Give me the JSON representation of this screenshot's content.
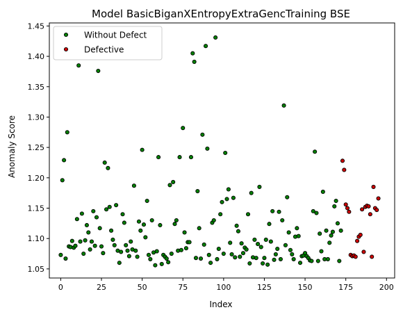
{
  "chart_data": {
    "type": "scatter",
    "title": "Model BasicBiganXEntropyExtraGencTraining BSE",
    "xlabel": "Index",
    "ylabel": "Anomaly Score",
    "xlim": [
      -7,
      205
    ],
    "ylim": [
      1.035,
      1.455
    ],
    "xticks": [
      0,
      25,
      50,
      75,
      100,
      125,
      150,
      175,
      200
    ],
    "yticks": [
      1.05,
      1.1,
      1.15,
      1.2,
      1.25,
      1.3,
      1.35,
      1.4,
      1.45
    ],
    "ytick_labels": [
      "1.05",
      "1.10",
      "1.15",
      "1.20",
      "1.25",
      "1.30",
      "1.35",
      "1.40",
      "1.45"
    ],
    "grid": false,
    "legend_position": "upper-left",
    "series": [
      {
        "name": "Without Defect",
        "color": "#008000",
        "points": [
          [
            0,
            1.073
          ],
          [
            1,
            1.196
          ],
          [
            2,
            1.229
          ],
          [
            3,
            1.067
          ],
          [
            4,
            1.275
          ],
          [
            5,
            1.087
          ],
          [
            6,
            1.086
          ],
          [
            7,
            1.096
          ],
          [
            8,
            1.085
          ],
          [
            9,
            1.088
          ],
          [
            10,
            1.132
          ],
          [
            11,
            1.385
          ],
          [
            12,
            1.095
          ],
          [
            13,
            1.141
          ],
          [
            14,
            1.075
          ],
          [
            15,
            1.097
          ],
          [
            16,
            1.122
          ],
          [
            17,
            1.11
          ],
          [
            18,
            1.082
          ],
          [
            19,
            1.095
          ],
          [
            20,
            1.145
          ],
          [
            21,
            1.088
          ],
          [
            22,
            1.135
          ],
          [
            23,
            1.376
          ],
          [
            24,
            1.117
          ],
          [
            25,
            1.087
          ],
          [
            26,
            1.076
          ],
          [
            27,
            1.225
          ],
          [
            28,
            1.148
          ],
          [
            29,
            1.216
          ],
          [
            30,
            1.152
          ],
          [
            31,
            1.113
          ],
          [
            32,
            1.098
          ],
          [
            33,
            1.089
          ],
          [
            34,
            1.155
          ],
          [
            35,
            1.08
          ],
          [
            36,
            1.06
          ],
          [
            37,
            1.078
          ],
          [
            38,
            1.14
          ],
          [
            39,
            1.126
          ],
          [
            40,
            1.089
          ],
          [
            41,
            1.08
          ],
          [
            42,
            1.071
          ],
          [
            43,
            1.095
          ],
          [
            44,
            1.082
          ],
          [
            45,
            1.187
          ],
          [
            46,
            1.08
          ],
          [
            47,
            1.07
          ],
          [
            48,
            1.128
          ],
          [
            49,
            1.113
          ],
          [
            50,
            1.246
          ],
          [
            51,
            1.123
          ],
          [
            52,
            1.102
          ],
          [
            53,
            1.162
          ],
          [
            54,
            1.073
          ],
          [
            55,
            1.066
          ],
          [
            56,
            1.13
          ],
          [
            57,
            1.077
          ],
          [
            58,
            1.056
          ],
          [
            59,
            1.079
          ],
          [
            60,
            1.234
          ],
          [
            61,
            1.122
          ],
          [
            62,
            1.058
          ],
          [
            63,
            1.073
          ],
          [
            64,
            1.07
          ],
          [
            65,
            1.067
          ],
          [
            66,
            1.061
          ],
          [
            67,
            1.188
          ],
          [
            68,
            1.075
          ],
          [
            69,
            1.193
          ],
          [
            70,
            1.124
          ],
          [
            71,
            1.13
          ],
          [
            72,
            1.08
          ],
          [
            73,
            1.234
          ],
          [
            74,
            1.081
          ],
          [
            75,
            1.282
          ],
          [
            76,
            1.11
          ],
          [
            77,
            1.084
          ],
          [
            78,
            1.094
          ],
          [
            79,
            1.094
          ],
          [
            80,
            1.234
          ],
          [
            81,
            1.405
          ],
          [
            82,
            1.391
          ],
          [
            83,
            1.068
          ],
          [
            84,
            1.178
          ],
          [
            85,
            1.117
          ],
          [
            86,
            1.067
          ],
          [
            87,
            1.271
          ],
          [
            88,
            1.09
          ],
          [
            89,
            1.417
          ],
          [
            90,
            1.248
          ],
          [
            91,
            1.073
          ],
          [
            92,
            1.06
          ],
          [
            93,
            1.126
          ],
          [
            94,
            1.13
          ],
          [
            95,
            1.431
          ],
          [
            96,
            1.066
          ],
          [
            97,
            1.083
          ],
          [
            98,
            1.14
          ],
          [
            99,
            1.16
          ],
          [
            100,
            1.075
          ],
          [
            101,
            1.241
          ],
          [
            102,
            1.165
          ],
          [
            103,
            1.181
          ],
          [
            104,
            1.093
          ],
          [
            105,
            1.074
          ],
          [
            106,
            1.167
          ],
          [
            107,
            1.069
          ],
          [
            108,
            1.121
          ],
          [
            109,
            1.112
          ],
          [
            110,
            1.07
          ],
          [
            111,
            1.092
          ],
          [
            112,
            1.076
          ],
          [
            113,
            1.085
          ],
          [
            114,
            1.082
          ],
          [
            115,
            1.14
          ],
          [
            116,
            1.059
          ],
          [
            117,
            1.175
          ],
          [
            118,
            1.069
          ],
          [
            119,
            1.098
          ],
          [
            120,
            1.068
          ],
          [
            121,
            1.091
          ],
          [
            122,
            1.185
          ],
          [
            123,
            1.086
          ],
          [
            124,
            1.059
          ],
          [
            125,
            1.068
          ],
          [
            126,
            1.098
          ],
          [
            127,
            1.057
          ],
          [
            128,
            1.124
          ],
          [
            129,
            1.095
          ],
          [
            130,
            1.145
          ],
          [
            131,
            1.065
          ],
          [
            132,
            1.074
          ],
          [
            133,
            1.083
          ],
          [
            134,
            1.144
          ],
          [
            135,
            1.066
          ],
          [
            136,
            1.13
          ],
          [
            137,
            1.319
          ],
          [
            138,
            1.089
          ],
          [
            139,
            1.168
          ],
          [
            140,
            1.11
          ],
          [
            141,
            1.081
          ],
          [
            142,
            1.074
          ],
          [
            143,
            1.066
          ],
          [
            144,
            1.103
          ],
          [
            145,
            1.117
          ],
          [
            146,
            1.104
          ],
          [
            147,
            1.06
          ],
          [
            148,
            1.071
          ],
          [
            149,
            1.072
          ],
          [
            150,
            1.076
          ],
          [
            151,
            1.071
          ],
          [
            152,
            1.068
          ],
          [
            153,
            1.064
          ],
          [
            154,
            1.063
          ],
          [
            155,
            1.145
          ],
          [
            156,
            1.243
          ],
          [
            157,
            1.142
          ],
          [
            158,
            1.063
          ],
          [
            159,
            1.108
          ],
          [
            160,
            1.079
          ],
          [
            161,
            1.177
          ],
          [
            162,
            1.066
          ],
          [
            163,
            1.113
          ],
          [
            164,
            1.066
          ],
          [
            165,
            1.093
          ],
          [
            166,
            1.105
          ],
          [
            167,
            1.111
          ],
          [
            168,
            1.153
          ],
          [
            169,
            1.162
          ],
          [
            170,
            1.125
          ],
          [
            171,
            1.063
          ],
          [
            172,
            1.113
          ]
        ]
      },
      {
        "name": "Defective",
        "color": "#cc0000",
        "points": [
          [
            173,
            1.228
          ],
          [
            174,
            1.213
          ],
          [
            175,
            1.156
          ],
          [
            176,
            1.15
          ],
          [
            177,
            1.144
          ],
          [
            178,
            1.073
          ],
          [
            179,
            1.071
          ],
          [
            180,
            1.072
          ],
          [
            181,
            1.07
          ],
          [
            182,
            1.096
          ],
          [
            183,
            1.103
          ],
          [
            184,
            1.106
          ],
          [
            185,
            1.148
          ],
          [
            186,
            1.078
          ],
          [
            187,
            1.152
          ],
          [
            188,
            1.154
          ],
          [
            189,
            1.153
          ],
          [
            190,
            1.14
          ],
          [
            191,
            1.07
          ],
          [
            192,
            1.185
          ],
          [
            193,
            1.15
          ],
          [
            194,
            1.147
          ],
          [
            195,
            1.166
          ]
        ]
      }
    ]
  }
}
